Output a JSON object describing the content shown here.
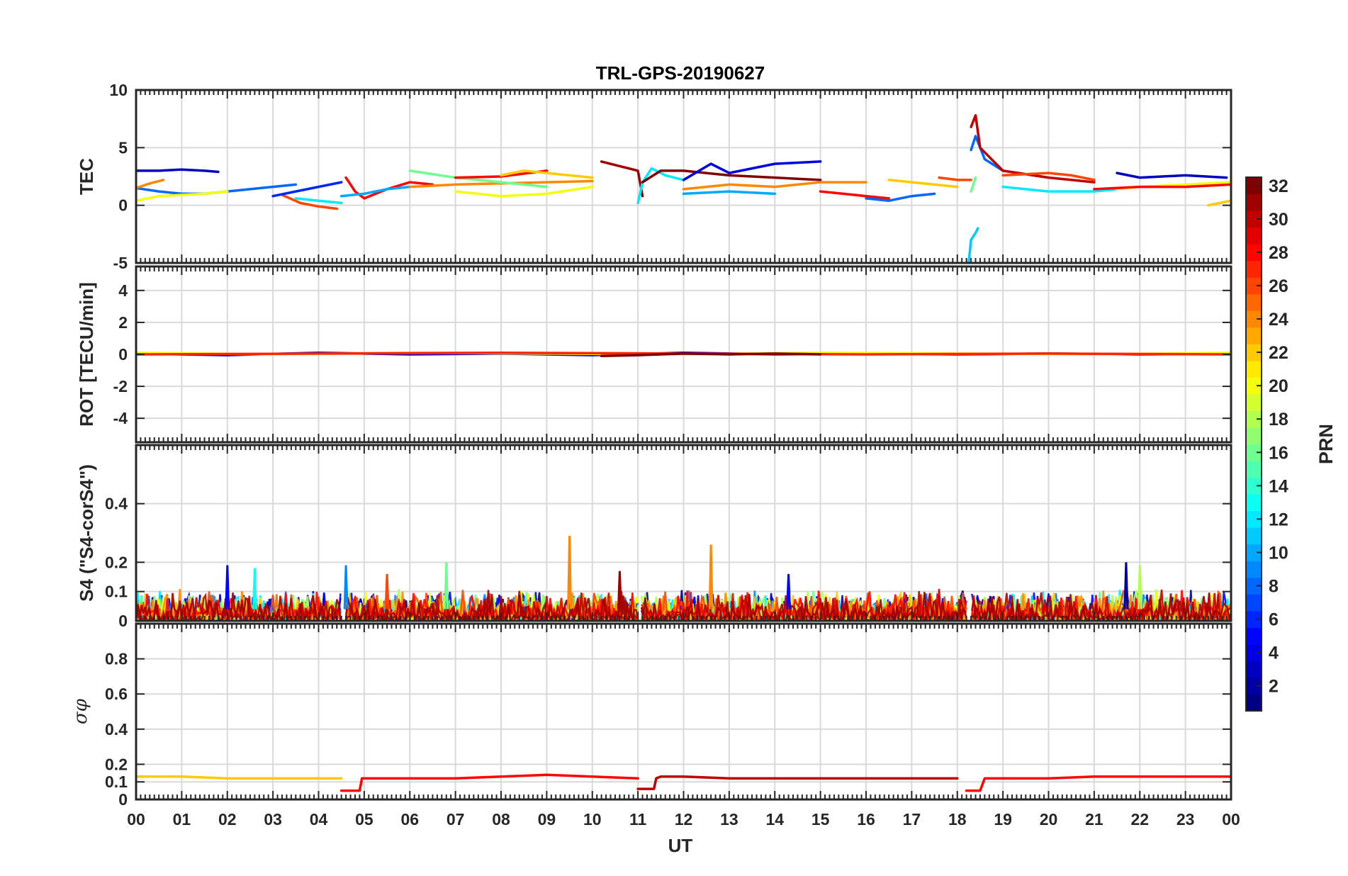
{
  "chart_data": {
    "type": "line",
    "title": "TRL-GPS-20190627",
    "xlabel": "UT",
    "x_ticks": [
      "00",
      "01",
      "02",
      "03",
      "04",
      "05",
      "06",
      "07",
      "08",
      "09",
      "10",
      "11",
      "12",
      "13",
      "14",
      "15",
      "16",
      "17",
      "18",
      "19",
      "20",
      "21",
      "22",
      "23",
      "00"
    ],
    "xlim": [
      0,
      24
    ],
    "grid": true,
    "panels": [
      {
        "id": "tec",
        "ylabel": "TEC",
        "ylim": [
          -5,
          10
        ],
        "yticks": [
          -5,
          0,
          5,
          10
        ],
        "series": [
          {
            "prn": 3,
            "x": [
              0,
              0.5,
              1.0,
              1.5,
              1.8
            ],
            "y": [
              3.0,
              3.0,
              3.1,
              3.0,
              2.9
            ]
          },
          {
            "prn": 8,
            "x": [
              0,
              0.5,
              1.0,
              1.5,
              2.0,
              2.5,
              3.0,
              3.5
            ],
            "y": [
              1.5,
              1.2,
              1.0,
              1.0,
              1.2,
              1.4,
              1.6,
              1.8
            ]
          },
          {
            "prn": 20,
            "x": [
              0,
              0.5,
              1.0,
              1.5,
              2.0
            ],
            "y": [
              0.4,
              0.8,
              0.9,
              1.0,
              1.2
            ]
          },
          {
            "prn": 24,
            "x": [
              0,
              0.3,
              0.6
            ],
            "y": [
              1.5,
              1.9,
              2.2
            ]
          },
          {
            "prn": 26,
            "x": [
              3.2,
              3.6,
              4.0,
              4.4
            ],
            "y": [
              0.9,
              0.2,
              -0.1,
              -0.3
            ]
          },
          {
            "prn": 6,
            "x": [
              3.0,
              3.5,
              4.0,
              4.5
            ],
            "y": [
              0.8,
              1.2,
              1.6,
              2.0
            ]
          },
          {
            "prn": 12,
            "x": [
              3.5,
              4.0,
              4.5
            ],
            "y": [
              0.6,
              0.4,
              0.2
            ]
          },
          {
            "prn": 28,
            "x": [
              4.6,
              4.8,
              5.0,
              5.5,
              6.0,
              6.5
            ],
            "y": [
              2.4,
              1.2,
              0.6,
              1.4,
              2.0,
              1.8
            ]
          },
          {
            "prn": 10,
            "x": [
              4.5,
              5.0,
              5.5,
              6.0
            ],
            "y": [
              0.8,
              1.0,
              1.4,
              1.6
            ]
          },
          {
            "prn": 24,
            "x": [
              6.0,
              7.0,
              8.0,
              9.0,
              10.0
            ],
            "y": [
              1.6,
              1.8,
              1.9,
              2.0,
              2.1
            ]
          },
          {
            "prn": 16,
            "x": [
              6.0,
              7.0,
              8.0,
              9.0
            ],
            "y": [
              3.0,
              2.4,
              2.0,
              1.6
            ]
          },
          {
            "prn": 20,
            "x": [
              7.0,
              8.0,
              9.0,
              10.0
            ],
            "y": [
              1.2,
              0.8,
              1.0,
              1.6
            ]
          },
          {
            "prn": 28,
            "x": [
              7.0,
              8.0,
              9.0
            ],
            "y": [
              2.4,
              2.5,
              3.0
            ]
          },
          {
            "prn": 22,
            "x": [
              8.0,
              8.5,
              9.0,
              9.5,
              10.0
            ],
            "y": [
              2.6,
              3.0,
              2.8,
              2.6,
              2.4
            ]
          },
          {
            "prn": 31,
            "x": [
              10.2,
              10.6,
              11.0,
              11.1
            ],
            "y": [
              3.8,
              3.4,
              3.0,
              0.8
            ]
          },
          {
            "prn": 12,
            "x": [
              11.0,
              11.1,
              11.3,
              11.6,
              12.0
            ],
            "y": [
              0.2,
              2.0,
              3.2,
              2.6,
              2.2
            ]
          },
          {
            "prn": 32,
            "x": [
              11.1,
              11.5,
              12.0,
              13.0,
              14.0,
              15.0
            ],
            "y": [
              2.0,
              3.0,
              3.0,
              2.6,
              2.4,
              2.2
            ]
          },
          {
            "prn": 4,
            "x": [
              12.0,
              12.6,
              13.0,
              14.0,
              15.0
            ],
            "y": [
              2.2,
              3.6,
              2.8,
              3.6,
              3.8
            ]
          },
          {
            "prn": 24,
            "x": [
              12.0,
              13.0,
              14.0,
              15.0,
              16.0
            ],
            "y": [
              1.4,
              1.8,
              1.6,
              2.0,
              2.0
            ]
          },
          {
            "prn": 10,
            "x": [
              12.0,
              13.0,
              14.0
            ],
            "y": [
              1.0,
              1.2,
              1.0
            ]
          },
          {
            "prn": 28,
            "x": [
              15.0,
              15.5,
              16.0,
              16.5
            ],
            "y": [
              1.2,
              1.0,
              0.8,
              0.6
            ]
          },
          {
            "prn": 8,
            "x": [
              16.0,
              16.5,
              17.0,
              17.5
            ],
            "y": [
              0.6,
              0.4,
              0.8,
              1.0
            ]
          },
          {
            "prn": 22,
            "x": [
              16.5,
              17.0,
              17.5,
              18.0
            ],
            "y": [
              2.2,
              2.0,
              1.8,
              1.6
            ]
          },
          {
            "prn": 26,
            "x": [
              17.6,
              18.0,
              18.3
            ],
            "y": [
              2.4,
              2.2,
              2.2
            ]
          },
          {
            "prn": 11,
            "x": [
              18.25,
              18.3,
              18.4,
              18.45
            ],
            "y": [
              -5.0,
              -3.0,
              -2.4,
              -2.0
            ]
          },
          {
            "prn": 8,
            "x": [
              18.3,
              18.4,
              18.6,
              19.0,
              20.0
            ],
            "y": [
              4.8,
              6.0,
              4.0,
              3.0,
              2.4
            ]
          },
          {
            "prn": 30,
            "x": [
              18.3,
              18.4,
              18.5,
              19.0,
              20.0,
              21.0
            ],
            "y": [
              6.8,
              7.8,
              5.0,
              3.0,
              2.4,
              2.0
            ]
          },
          {
            "prn": 16,
            "x": [
              18.3,
              18.4
            ],
            "y": [
              1.2,
              2.4
            ]
          },
          {
            "prn": 26,
            "x": [
              19.0,
              20.0,
              20.5,
              21.0
            ],
            "y": [
              2.6,
              2.8,
              2.6,
              2.2
            ]
          },
          {
            "prn": 12,
            "x": [
              19.0,
              20.0,
              21.0,
              21.5
            ],
            "y": [
              1.6,
              1.2,
              1.2,
              1.4
            ]
          },
          {
            "prn": 3,
            "x": [
              21.5,
              22.0,
              23.0,
              23.9
            ],
            "y": [
              2.8,
              2.4,
              2.6,
              2.4
            ]
          },
          {
            "prn": 20,
            "x": [
              21.5,
              22.0,
              23.0,
              24.0
            ],
            "y": [
              1.4,
              1.6,
              1.8,
              2.0
            ]
          },
          {
            "prn": 28,
            "x": [
              21.0,
              22.0,
              23.0,
              24.0
            ],
            "y": [
              1.4,
              1.6,
              1.6,
              1.8
            ]
          },
          {
            "prn": 22,
            "x": [
              23.5,
              24.0
            ],
            "y": [
              0.0,
              0.4
            ]
          }
        ]
      },
      {
        "id": "rot",
        "ylabel": "ROT [TECU/min]",
        "ylim": [
          -5.5,
          5.5
        ],
        "yticks": [
          -4,
          -2,
          0,
          2,
          4
        ],
        "series": [
          {
            "prn": 5,
            "x": [
              0,
              2,
              4,
              6,
              8,
              10,
              12,
              14,
              16,
              18,
              20,
              22,
              24
            ],
            "y": [
              0.05,
              -0.05,
              0.1,
              0.0,
              0.05,
              -0.05,
              0.1,
              0.0,
              0.05,
              0.0,
              0.05,
              0.0,
              0.05
            ]
          },
          {
            "prn": 20,
            "x": [
              0,
              3,
              6,
              9,
              12,
              15,
              18,
              21,
              24
            ],
            "y": [
              0.1,
              0.0,
              0.1,
              0.05,
              0.0,
              0.1,
              0.05,
              0.0,
              0.1
            ]
          },
          {
            "prn": 27,
            "x": [
              0,
              4,
              8,
              12,
              16,
              20,
              24
            ],
            "y": [
              0.0,
              0.05,
              0.1,
              0.05,
              0.0,
              0.05,
              0.0
            ]
          },
          {
            "prn": 32,
            "x": [
              10.2,
              11,
              12,
              13,
              14,
              15
            ],
            "y": [
              -0.1,
              -0.05,
              0.05,
              0.0,
              0.05,
              0.0
            ]
          }
        ]
      },
      {
        "id": "s4",
        "ylabel": "S4 (\"S4-corS4\")",
        "ylim": [
          0,
          0.6
        ],
        "yticks": [
          0,
          0.1,
          0.2,
          0.4
        ],
        "peaks": [
          {
            "x": 9.5,
            "y": 0.29,
            "prn": 24
          },
          {
            "x": 12.6,
            "y": 0.26,
            "prn": 24
          },
          {
            "x": 2.0,
            "y": 0.19,
            "prn": 5
          },
          {
            "x": 4.6,
            "y": 0.19,
            "prn": 9
          },
          {
            "x": 6.8,
            "y": 0.2,
            "prn": 16
          },
          {
            "x": 21.7,
            "y": 0.2,
            "prn": 2
          },
          {
            "x": 22.0,
            "y": 0.19,
            "prn": 18
          },
          {
            "x": 10.6,
            "y": 0.17,
            "prn": 31
          },
          {
            "x": 2.6,
            "y": 0.18,
            "prn": 13
          },
          {
            "x": 5.5,
            "y": 0.16,
            "prn": 26
          },
          {
            "x": 14.3,
            "y": 0.16,
            "prn": 5
          }
        ],
        "baseline_range": [
          0.0,
          0.1
        ]
      },
      {
        "id": "sigma",
        "ylabel": "σφ",
        "ylim": [
          0,
          1
        ],
        "yticks": [
          0,
          0.1,
          0.2,
          0.4,
          0.6,
          0.8
        ],
        "series": [
          {
            "prn": 22,
            "x": [
              0,
              1,
              2,
              3,
              4,
              4.5
            ],
            "y": [
              0.13,
              0.13,
              0.12,
              0.12,
              0.12,
              0.12
            ]
          },
          {
            "prn": 28,
            "x": [
              4.5,
              4.9,
              4.95,
              5.0,
              6,
              7,
              8,
              9,
              10,
              11
            ],
            "y": [
              0.05,
              0.05,
              0.12,
              0.12,
              0.12,
              0.12,
              0.13,
              0.14,
              0.13,
              0.12
            ]
          },
          {
            "prn": 30,
            "x": [
              11,
              11.35,
              11.4,
              11.5,
              12,
              13,
              14,
              15,
              16,
              17,
              18
            ],
            "y": [
              0.06,
              0.06,
              0.12,
              0.13,
              0.13,
              0.12,
              0.12,
              0.12,
              0.12,
              0.12,
              0.12
            ]
          },
          {
            "prn": 28,
            "x": [
              18.2,
              18.5,
              18.6,
              19,
              20,
              21,
              22,
              23,
              24
            ],
            "y": [
              0.05,
              0.05,
              0.12,
              0.12,
              0.12,
              0.13,
              0.13,
              0.13,
              0.13
            ]
          }
        ]
      }
    ],
    "colorbar": {
      "label": "PRN",
      "range": [
        1,
        32
      ],
      "ticks": [
        2,
        4,
        6,
        8,
        10,
        12,
        14,
        16,
        18,
        20,
        22,
        24,
        26,
        28,
        30,
        32
      ],
      "colormap": "jet"
    }
  }
}
